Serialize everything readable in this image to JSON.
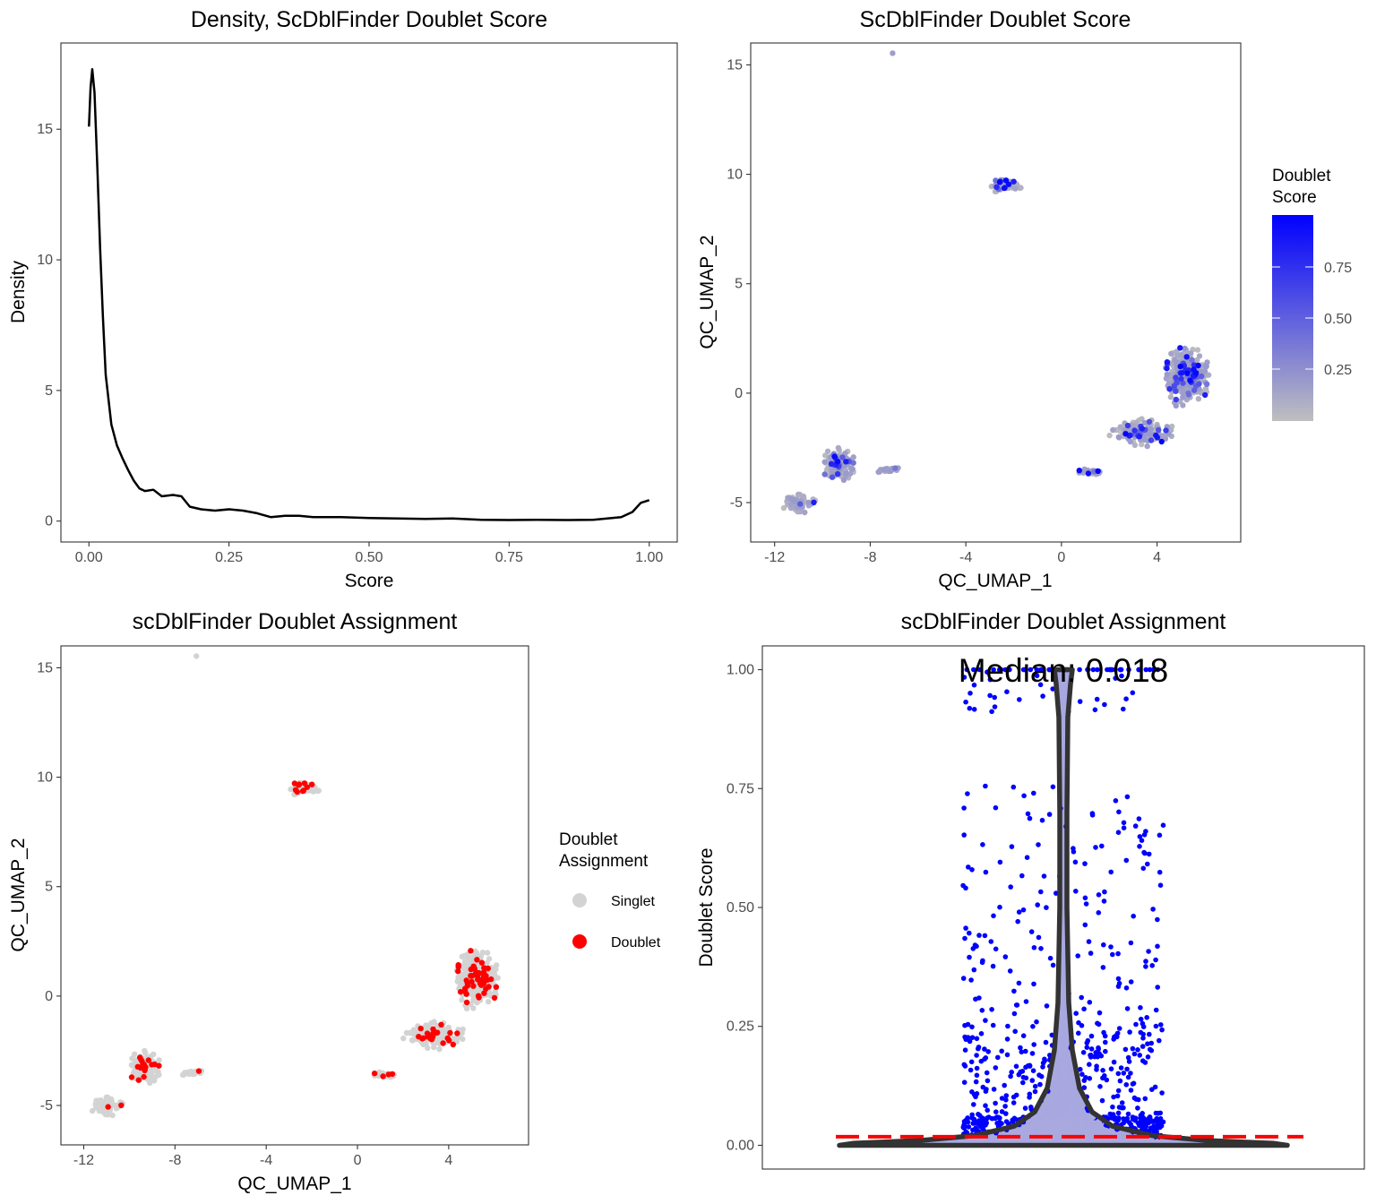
{
  "chart_data": [
    {
      "type": "line",
      "title": "Density, ScDblFinder Doublet Score",
      "xlabel": "Score",
      "ylabel": "Density",
      "xlim": [
        -0.05,
        1.05
      ],
      "ylim": [
        -0.8,
        18.3
      ],
      "x_ticks": [
        "0.00",
        "0.25",
        "0.50",
        "0.75",
        "1.00"
      ],
      "y_ticks": [
        "0",
        "5",
        "10",
        "15"
      ],
      "grid": false,
      "series": [
        {
          "x": [
            0.0,
            0.003,
            0.006,
            0.01,
            0.015,
            0.02,
            0.025,
            0.03,
            0.04,
            0.05,
            0.06,
            0.07,
            0.08,
            0.09,
            0.1,
            0.115,
            0.13,
            0.15,
            0.165,
            0.18,
            0.2,
            0.225,
            0.25,
            0.275,
            0.3,
            0.325,
            0.35,
            0.375,
            0.4,
            0.45,
            0.5,
            0.55,
            0.6,
            0.65,
            0.7,
            0.75,
            0.8,
            0.85,
            0.9,
            0.95,
            0.97,
            0.985,
            1.0
          ],
          "y": [
            15.1,
            16.6,
            17.3,
            16.4,
            13.5,
            10.4,
            7.8,
            5.6,
            3.7,
            2.9,
            2.4,
            1.95,
            1.55,
            1.25,
            1.15,
            1.2,
            0.95,
            1.0,
            0.95,
            0.55,
            0.45,
            0.4,
            0.45,
            0.4,
            0.3,
            0.15,
            0.2,
            0.2,
            0.15,
            0.15,
            0.12,
            0.1,
            0.08,
            0.1,
            0.05,
            0.04,
            0.05,
            0.04,
            0.05,
            0.15,
            0.35,
            0.7,
            0.8
          ]
        }
      ]
    },
    {
      "type": "scatter",
      "title": "ScDblFinder Doublet Score",
      "xlabel": "QC_UMAP_1",
      "ylabel": "QC_UMAP_2",
      "xlim": [
        -13.0,
        7.5
      ],
      "ylim": [
        -6.8,
        16.0
      ],
      "x_ticks": [
        "-12",
        "-8",
        "-4",
        "0",
        "4"
      ],
      "y_ticks": [
        "-5",
        "0",
        "5",
        "10",
        "15"
      ],
      "grid": false,
      "color_scale": {
        "low": "#bfbfbf",
        "high": "#0000ff",
        "range": [
          0.0,
          1.0
        ]
      },
      "legend": {
        "title_lines": [
          "Doublet",
          "Score"
        ],
        "labels": [
          "0.75",
          "0.50",
          "0.25"
        ],
        "position": "right"
      },
      "clusters": [
        {
          "center": [
            -7.0,
            15.5
          ],
          "size": [
            0.1,
            0.1
          ],
          "count": 1,
          "doublet_fraction": 0.0
        },
        {
          "center": [
            -2.3,
            9.5
          ],
          "size": [
            0.8,
            0.4
          ],
          "count": 60,
          "doublet_fraction": 0.1
        },
        {
          "center": [
            -9.3,
            -3.2
          ],
          "size": [
            0.8,
            0.9
          ],
          "count": 150,
          "doublet_fraction": 0.12
        },
        {
          "center": [
            -11.0,
            -5.0
          ],
          "size": [
            0.9,
            0.6
          ],
          "count": 60,
          "doublet_fraction": 0.12
        },
        {
          "center": [
            -7.3,
            -3.5
          ],
          "size": [
            0.8,
            0.15
          ],
          "count": 25,
          "doublet_fraction": 0.1
        },
        {
          "center": [
            1.2,
            -3.6
          ],
          "size": [
            0.6,
            0.2
          ],
          "count": 25,
          "doublet_fraction": 0.1
        },
        {
          "center": [
            3.4,
            -1.8
          ],
          "size": [
            1.6,
            0.7
          ],
          "count": 160,
          "doublet_fraction": 0.12
        },
        {
          "center": [
            5.2,
            0.8
          ],
          "size": [
            1.1,
            1.5
          ],
          "count": 420,
          "doublet_fraction": 0.14
        }
      ]
    },
    {
      "type": "scatter",
      "title": "scDblFinder Doublet Assignment",
      "xlabel": "QC_UMAP_1",
      "ylabel": "QC_UMAP_2",
      "xlim": [
        -13.0,
        7.5
      ],
      "ylim": [
        -6.8,
        16.0
      ],
      "x_ticks": [
        "-12",
        "-8",
        "-4",
        "0",
        "4"
      ],
      "y_ticks": [
        "-5",
        "0",
        "5",
        "10",
        "15"
      ],
      "grid": false,
      "legend": {
        "title_lines": [
          "Doublet",
          "Assignment"
        ],
        "position": "right",
        "entries": [
          {
            "label": "Singlet",
            "color": "#d3d3d3"
          },
          {
            "label": "Doublet",
            "color": "#ff0000"
          }
        ]
      }
    },
    {
      "type": "scatter",
      "title": "scDblFinder Doublet Assignment",
      "xlabel": "",
      "ylabel": "Doublet Score",
      "xlim": [
        0.4,
        1.6
      ],
      "ylim": [
        -0.05,
        1.05
      ],
      "y_ticks": [
        "0.00",
        "0.25",
        "0.50",
        "0.75",
        "1.00"
      ],
      "grid": false,
      "annotation": "Median: 0.018",
      "median": 0.018,
      "point_color": "#0000ff",
      "violin_fill": "#8b8bd6",
      "median_line_color": "#ff0000"
    }
  ]
}
